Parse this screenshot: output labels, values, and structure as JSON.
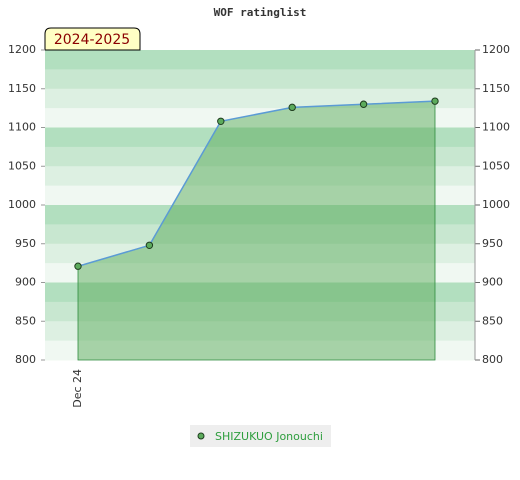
{
  "chart_data": {
    "type": "area",
    "title": "WOF ratinglist",
    "annotation": "2024-2025",
    "categories": [
      "Dec 24",
      null,
      null,
      null,
      null,
      null
    ],
    "series": [
      {
        "name": "SHIZUKUO Jonouchi",
        "color": "#5cab5c",
        "line_color": "#5b9bd5",
        "values": [
          921,
          948,
          1108,
          1126,
          1130,
          1134
        ]
      }
    ],
    "ylim": [
      800,
      1200
    ],
    "yticks": [
      800,
      850,
      900,
      950,
      1000,
      1050,
      1100,
      1150,
      1200
    ],
    "y2lim": [
      800,
      1200
    ],
    "y2ticks": [
      800,
      850,
      900,
      950,
      1000,
      1050,
      1100,
      1150,
      1200
    ]
  }
}
